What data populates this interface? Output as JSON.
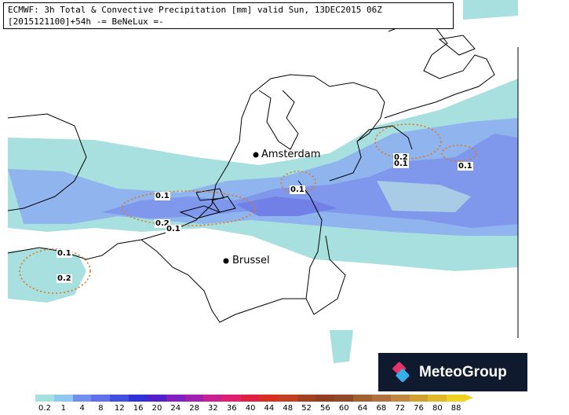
{
  "header": {
    "line1": "ECMWF: 3h Total & Convective Precipitation [mm] valid Sun, 13DEC2015 06Z",
    "line2": "[2015121100]+54h -= BeNeLux =-"
  },
  "cities": [
    {
      "name": "Amsterdam"
    },
    {
      "name": "Brussel"
    }
  ],
  "contour_labels": [
    "0.1",
    "0.2",
    "0.1",
    "0.1",
    "0.2",
    "0.1",
    "0.1",
    "0.2",
    "0.1"
  ],
  "brand": {
    "name": "MeteoGroup"
  },
  "colorscale": {
    "labels": [
      "0.2",
      "1",
      "4",
      "8",
      "12",
      "16",
      "20",
      "24",
      "28",
      "32",
      "36",
      "40",
      "44",
      "48",
      "52",
      "56",
      "60",
      "64",
      "68",
      "72",
      "76",
      "80",
      "88"
    ],
    "colors": [
      "#a8e0e0",
      "#90c8f0",
      "#7090f0",
      "#6070e8",
      "#4050e0",
      "#3030d8",
      "#5020c8",
      "#8020c0",
      "#a020b0",
      "#c82090",
      "#e02070",
      "#e02040",
      "#d83020",
      "#c04020",
      "#a04020",
      "#904020",
      "#904828",
      "#a06030",
      "#b07040",
      "#c08840",
      "#d0a030",
      "#e0b828",
      "#f0d020"
    ]
  },
  "legend_note": "precipitation [mm]"
}
